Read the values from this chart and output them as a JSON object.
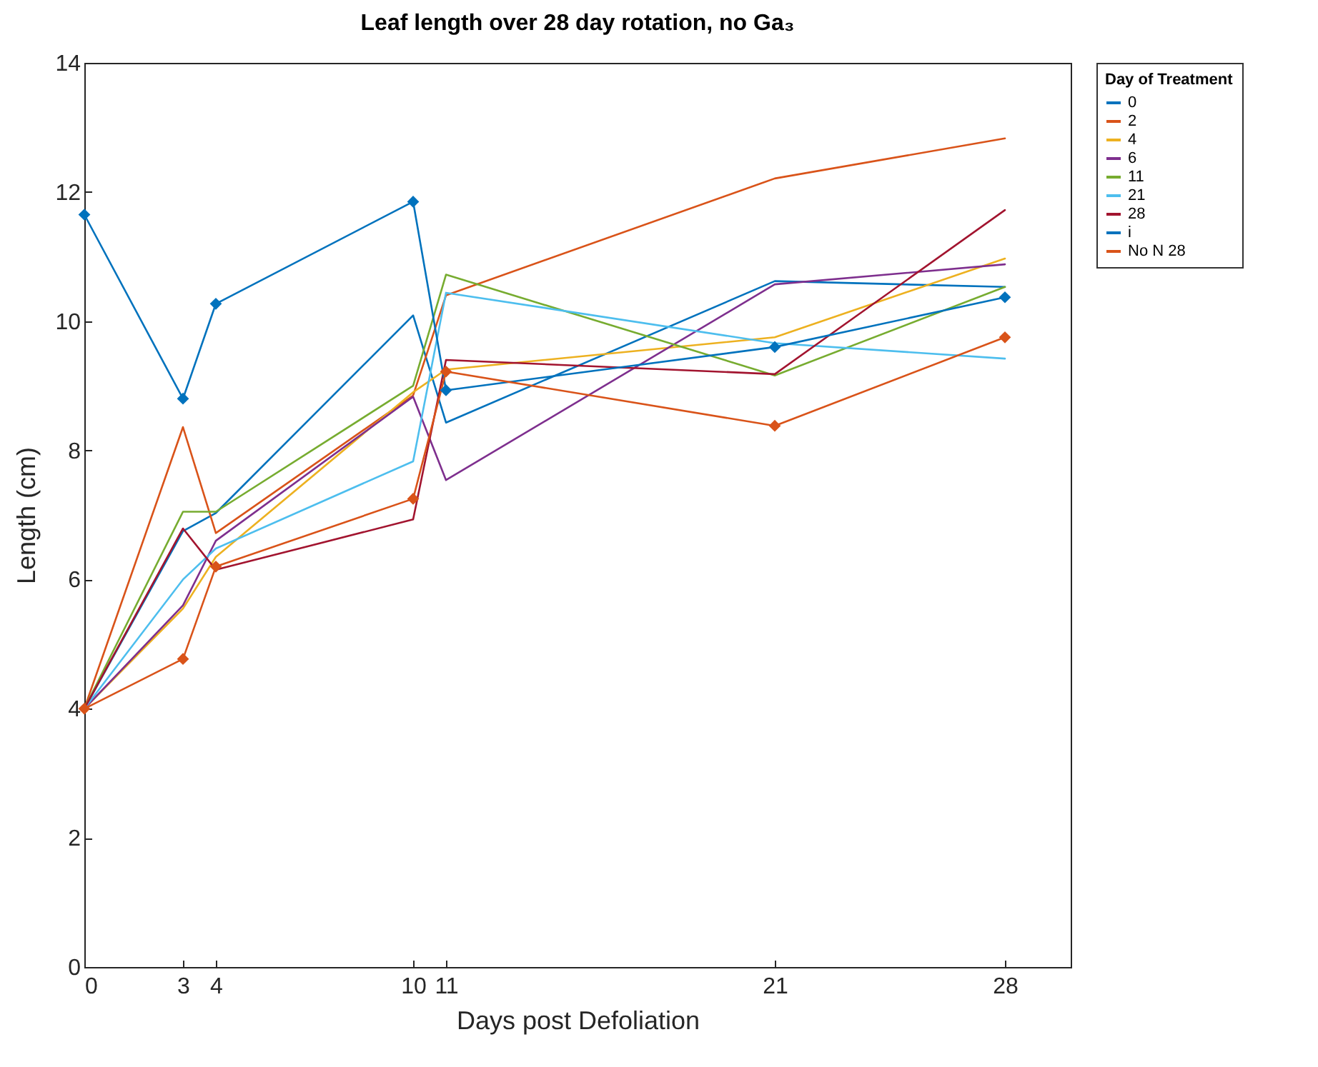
{
  "chart_data": {
    "type": "line",
    "title": "Leaf length over 28 day rotation, no Ga₃",
    "xlabel": "Days post Defoliation",
    "ylabel": "Length (cm)",
    "legend_title": "Day of Treatment",
    "x": [
      0,
      3,
      4,
      10,
      11,
      21,
      28
    ],
    "series": [
      {
        "name": "0",
        "color": "#0072bd",
        "values": [
          4.0,
          6.75,
          7.03,
          10.09,
          8.43,
          10.62,
          10.53
        ]
      },
      {
        "name": "2",
        "color": "#d95319",
        "values": [
          4.0,
          8.36,
          6.72,
          8.85,
          10.4,
          12.21,
          12.83
        ]
      },
      {
        "name": "4",
        "color": "#edb120",
        "values": [
          4.0,
          5.55,
          6.35,
          8.9,
          9.25,
          9.75,
          10.97
        ]
      },
      {
        "name": "6",
        "color": "#7e2f8e",
        "values": [
          4.0,
          5.6,
          6.6,
          8.83,
          7.54,
          10.57,
          10.88
        ]
      },
      {
        "name": "11",
        "color": "#77ac30",
        "values": [
          4.0,
          7.05,
          7.05,
          9.0,
          10.72,
          9.16,
          10.53
        ]
      },
      {
        "name": "21",
        "color": "#4dbeee",
        "values": [
          4.0,
          6.0,
          6.48,
          7.83,
          10.44,
          9.66,
          9.42
        ]
      },
      {
        "name": "28",
        "color": "#a2142f",
        "values": [
          4.0,
          6.79,
          6.15,
          6.93,
          9.4,
          9.18,
          11.72
        ]
      },
      {
        "name": "i",
        "color": "#0072bd",
        "marker": "diamond",
        "values": [
          11.65,
          8.8,
          10.27,
          11.85,
          8.93,
          9.6,
          10.37
        ]
      },
      {
        "name": "No N 28",
        "color": "#d95319",
        "marker": "diamond",
        "values": [
          4.0,
          4.77,
          6.2,
          7.25,
          9.22,
          8.38,
          9.75
        ]
      }
    ],
    "xlim": [
      0,
      30
    ],
    "xticks": [
      0,
      3,
      4,
      10,
      11,
      21,
      28
    ],
    "ylim": [
      0,
      14
    ],
    "yticks": [
      0,
      2,
      4,
      6,
      8,
      10,
      12,
      14
    ],
    "grid": false,
    "legend": "right"
  }
}
